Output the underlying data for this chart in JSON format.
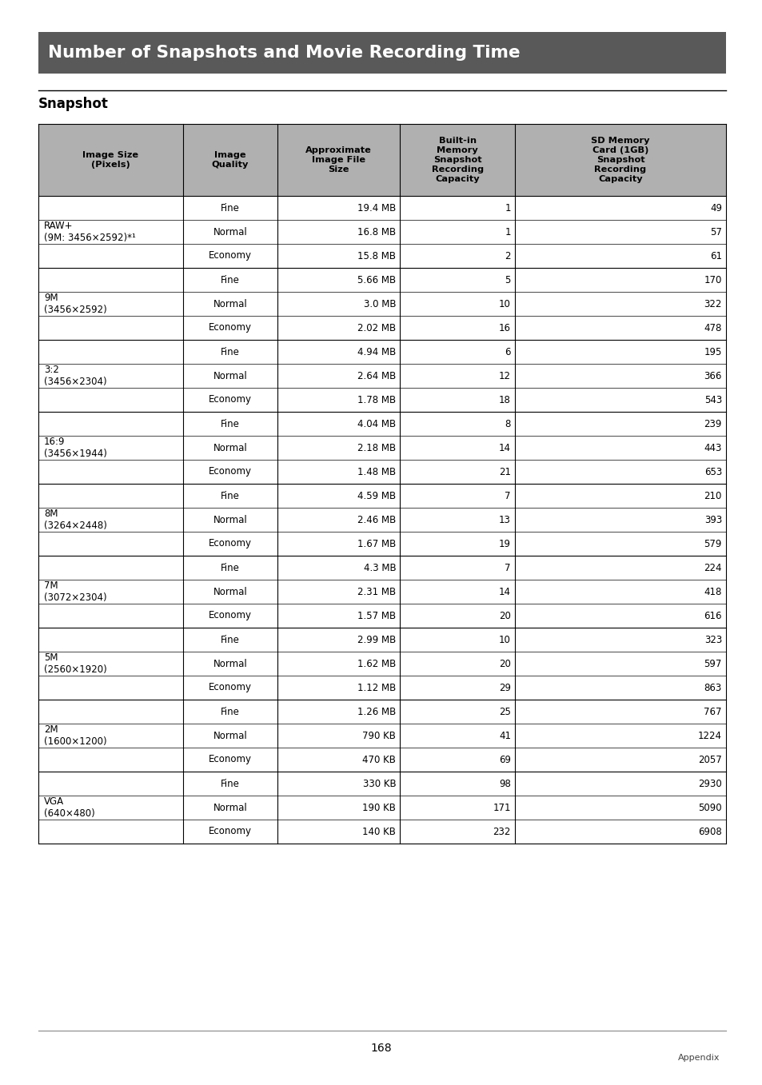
{
  "title": "Number of Snapshots and Movie Recording Time",
  "section": "Snapshot",
  "header_bg": "#595959",
  "table_header_bg": "#b0b0b0",
  "col_headers": [
    "Image Size\n(Pixels)",
    "Image\nQuality",
    "Approximate\nImage File\nSize",
    "Built-in\nMemory\nSnapshot\nRecording\nCapacity",
    "SD Memory\nCard (1GB)\nSnapshot\nRecording\nCapacity"
  ],
  "rows": [
    [
      "RAW+\n(9M: 3456×2592)*¹",
      "Fine",
      "19.4 MB",
      "1",
      "49"
    ],
    [
      "",
      "Normal",
      "16.8 MB",
      "1",
      "57"
    ],
    [
      "",
      "Economy",
      "15.8 MB",
      "2",
      "61"
    ],
    [
      "9M\n(3456×2592)",
      "Fine",
      "5.66 MB",
      "5",
      "170"
    ],
    [
      "",
      "Normal",
      "3.0 MB",
      "10",
      "322"
    ],
    [
      "",
      "Economy",
      "2.02 MB",
      "16",
      "478"
    ],
    [
      "3:2\n(3456×2304)",
      "Fine",
      "4.94 MB",
      "6",
      "195"
    ],
    [
      "",
      "Normal",
      "2.64 MB",
      "12",
      "366"
    ],
    [
      "",
      "Economy",
      "1.78 MB",
      "18",
      "543"
    ],
    [
      "16:9\n(3456×1944)",
      "Fine",
      "4.04 MB",
      "8",
      "239"
    ],
    [
      "",
      "Normal",
      "2.18 MB",
      "14",
      "443"
    ],
    [
      "",
      "Economy",
      "1.48 MB",
      "21",
      "653"
    ],
    [
      "8M\n(3264×2448)",
      "Fine",
      "4.59 MB",
      "7",
      "210"
    ],
    [
      "",
      "Normal",
      "2.46 MB",
      "13",
      "393"
    ],
    [
      "",
      "Economy",
      "1.67 MB",
      "19",
      "579"
    ],
    [
      "7M\n(3072×2304)",
      "Fine",
      "4.3 MB",
      "7",
      "224"
    ],
    [
      "",
      "Normal",
      "2.31 MB",
      "14",
      "418"
    ],
    [
      "",
      "Economy",
      "1.57 MB",
      "20",
      "616"
    ],
    [
      "5M\n(2560×1920)",
      "Fine",
      "2.99 MB",
      "10",
      "323"
    ],
    [
      "",
      "Normal",
      "1.62 MB",
      "20",
      "597"
    ],
    [
      "",
      "Economy",
      "1.12 MB",
      "29",
      "863"
    ],
    [
      "2M\n(1600×1200)",
      "Fine",
      "1.26 MB",
      "25",
      "767"
    ],
    [
      "",
      "Normal",
      "790 KB",
      "41",
      "1224"
    ],
    [
      "",
      "Economy",
      "470 KB",
      "69",
      "2057"
    ],
    [
      "VGA\n(640×480)",
      "Fine",
      "330 KB",
      "98",
      "2930"
    ],
    [
      "",
      "Normal",
      "190 KB",
      "171",
      "5090"
    ],
    [
      "",
      "Economy",
      "140 KB",
      "232",
      "6908"
    ]
  ],
  "group_rows": [
    0,
    3,
    6,
    9,
    12,
    15,
    18,
    21,
    24
  ],
  "page_number": "168",
  "appendix_text": "Appendix"
}
